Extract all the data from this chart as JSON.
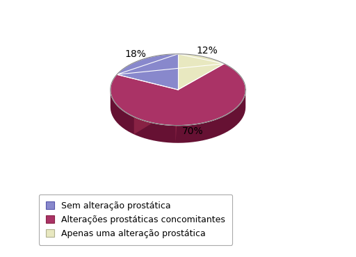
{
  "slices": [
    18,
    70,
    12
  ],
  "labels": [
    "18%",
    "70%",
    "12%"
  ],
  "colors": [
    "#8888cc",
    "#aa3366",
    "#e8e8c0"
  ],
  "dark_colors": [
    "#5555aa",
    "#661133",
    "#b0b090"
  ],
  "side_colors": [
    "#6666aa",
    "#882244",
    "#c0c0a0"
  ],
  "legend_labels": [
    "Sem alteração prostática",
    "Alterações prostáticas concomitantes",
    "Apenas uma alteração prostática"
  ],
  "legend_colors": [
    "#8888cc",
    "#aa3366",
    "#e8e8c0"
  ],
  "legend_edge_colors": [
    "#5555aa",
    "#882244",
    "#b0b090"
  ],
  "background_color": "#ffffff",
  "label_fontsize": 10,
  "legend_fontsize": 9,
  "startangle": 90
}
